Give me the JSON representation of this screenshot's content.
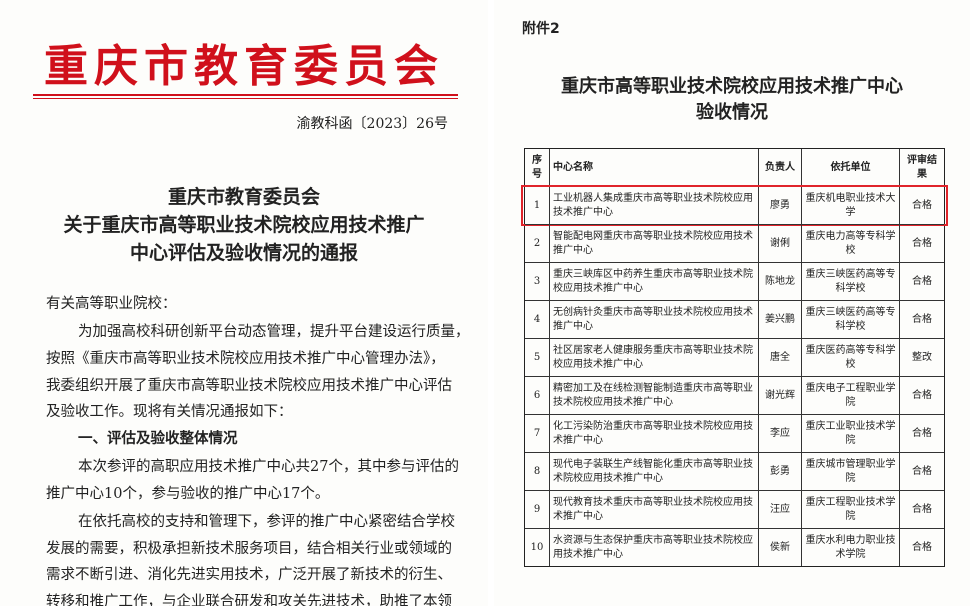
{
  "left_page": {
    "header": {
      "org": "重庆市教育委员会",
      "doc_number": "渝教科函〔2023〕26号"
    },
    "title": [
      "重庆市教育委员会",
      "关于重庆市高等职业技术院校应用技术推广",
      "中心评估及验收情况的通报"
    ],
    "body": [
      {
        "text": "有关高等职业院校：",
        "style": "plain"
      },
      {
        "text": "为加强高校科研创新平台动态管理，提升平台建设运行质量，",
        "style": "indent"
      },
      {
        "text": "按照《重庆市高等职业技术院校应用技术推广中心管理办法》，",
        "style": "plain"
      },
      {
        "text": "我委组织开展了重庆市高等职业技术院校应用技术推广中心评估",
        "style": "plain"
      },
      {
        "text": "及验收工作。现将有关情况通报如下：",
        "style": "plain"
      },
      {
        "text": "一、评估及验收整体情况",
        "style": "heading"
      },
      {
        "text": "本次参评的高职应用技术推广中心共27个，其中参与评估的",
        "style": "indent"
      },
      {
        "text": "推广中心10个，参与验收的推广中心17个。",
        "style": "plain"
      },
      {
        "text": "在依托高校的支持和管理下，参评的推广中心紧密结合学校",
        "style": "indent"
      },
      {
        "text": "发展的需要，积极承担新技术服务项目，结合相关行业或领域的",
        "style": "plain"
      },
      {
        "text": "需求不断引进、消化先进实用技术，广泛开展了新技术的衍生、",
        "style": "plain"
      },
      {
        "text": "转移和推广工作，与企业联合研发和攻关先进技术，助推了本领",
        "style": "plain"
      }
    ]
  },
  "right_page": {
    "attachment": "附件2",
    "title": [
      "重庆市高等职业技术院校应用技术推广中心",
      "验收情况"
    ],
    "table": {
      "headers": [
        "序号",
        "中心名称",
        "负责人",
        "依托单位",
        "评审结果"
      ],
      "rows": [
        [
          "1",
          "工业机器人集成重庆市高等职业技术院校应用技术推广中心",
          "廖勇",
          "重庆机电职业技术大学",
          "合格"
        ],
        [
          "2",
          "智能配电网重庆市高等职业技术院校应用技术推广中心",
          "谢俐",
          "重庆电力高等专科学校",
          "合格"
        ],
        [
          "3",
          "重庆三峡库区中药养生重庆市高等职业技术院校应用技术推广中心",
          "陈地龙",
          "重庆三峡医药高等专科学校",
          "合格"
        ],
        [
          "4",
          "无创病针灸重庆市高等职业技术院校应用技术推广中心",
          "姜兴鹏",
          "重庆三峡医药高等专科学校",
          "合格"
        ],
        [
          "5",
          "社区居家老人健康服务重庆市高等职业技术院校应用技术推广中心",
          "唐全",
          "重庆医药高等专科学校",
          "整改"
        ],
        [
          "6",
          "精密加工及在线检测智能制造重庆市高等职业技术院校应用技术推广中心",
          "谢光辉",
          "重庆电子工程职业学院",
          "合格"
        ],
        [
          "7",
          "化工污染防治重庆市高等职业技术院校应用技术推广中心",
          "李应",
          "重庆工业职业技术学院",
          "合格"
        ],
        [
          "8",
          "现代电子装联生产线智能化重庆市高等职业技术院校应用技术推广中心",
          "彭勇",
          "重庆城市管理职业学院",
          "合格"
        ],
        [
          "9",
          "现代教育技术重庆市高等职业技术院校应用技术推广中心",
          "汪应",
          "重庆工程职业技术学院",
          "合格"
        ],
        [
          "10",
          "水资源与生态保护重庆市高等职业技术院校应用技术推广中心",
          "侯新",
          "重庆水利电力职业技术学院",
          "合格"
        ]
      ],
      "highlighted_row": 0
    }
  }
}
